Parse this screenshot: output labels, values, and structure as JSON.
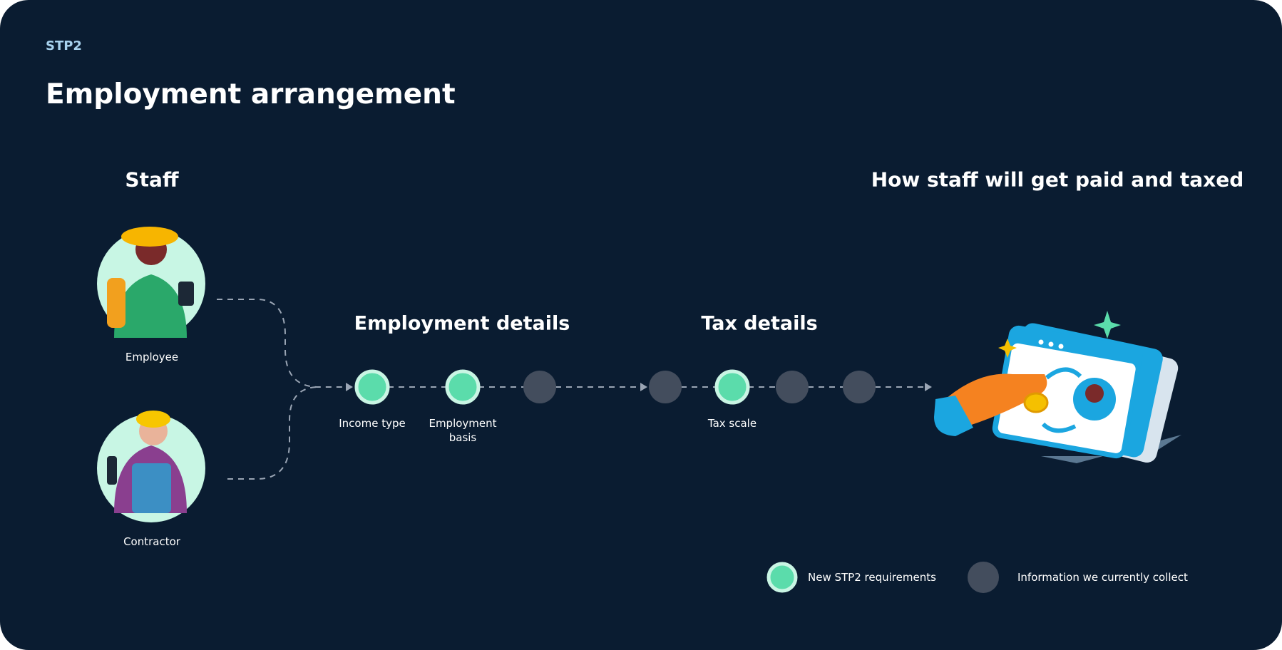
{
  "header": {
    "eyebrow": "STP2",
    "title": "Employment arrangement"
  },
  "staff": {
    "heading": "Staff",
    "items": [
      {
        "label": "Employee"
      },
      {
        "label": "Contractor"
      }
    ]
  },
  "sections": [
    {
      "title": "Employment details"
    },
    {
      "title": "Tax details"
    }
  ],
  "nodes": [
    {
      "label": "Income type"
    },
    {
      "label": "Employment basis"
    },
    {
      "label": "Tax scale"
    }
  ],
  "outcome": {
    "heading": "How staff will get paid and taxed"
  },
  "legend": [
    {
      "label": "New STP2 requirements"
    },
    {
      "label": "Information we currently collect"
    }
  ]
}
